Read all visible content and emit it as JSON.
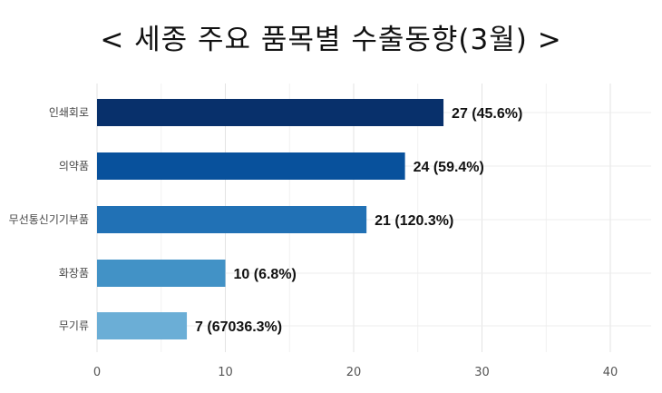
{
  "chart_data": {
    "type": "bar",
    "orientation": "horizontal",
    "title": "< 세종 주요 품목별 수출동향(3월) >",
    "categories": [
      "인쇄회로",
      "의약품",
      "무선통신기기부품",
      "화장품",
      "무기류"
    ],
    "values": [
      27,
      24,
      21,
      10,
      7
    ],
    "data_labels": [
      "27 (45.6%)",
      "24 (59.4%)",
      "21 (120.3%)",
      "10 (6.8%)",
      "7 (67036.3%)"
    ],
    "bar_colors": [
      "#08306b",
      "#08519c",
      "#2171b5",
      "#4292c6",
      "#6baed6"
    ],
    "xlim": [
      0,
      42
    ],
    "xticks": [
      0,
      10,
      20,
      30,
      40
    ],
    "grid": true
  }
}
